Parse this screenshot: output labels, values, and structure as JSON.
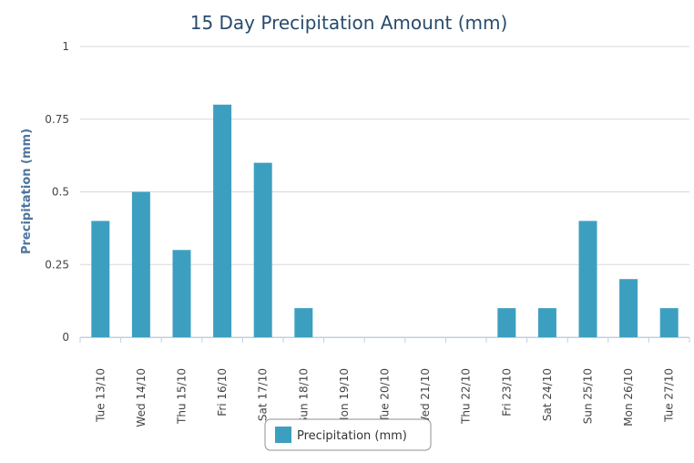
{
  "chart_data": {
    "type": "bar",
    "title": "15 Day Precipitation Amount (mm)",
    "xlabel": "",
    "ylabel": "Precipitation (mm)",
    "ylim": [
      0,
      1
    ],
    "yticks": [
      "0",
      "0.25",
      "0.5",
      "0.75",
      "1"
    ],
    "ytick_values": [
      0,
      0.25,
      0.5,
      0.75,
      1
    ],
    "grid": true,
    "legend_position": "bottom-center",
    "categories": [
      "Tue 13/10",
      "Wed 14/10",
      "Thu 15/10",
      "Fri 16/10",
      "Sat 17/10",
      "Sun 18/10",
      "Mon 19/10",
      "Tue 20/10",
      "Wed 21/10",
      "Thu 22/10",
      "Fri 23/10",
      "Sat 24/10",
      "Sun 25/10",
      "Mon 26/10",
      "Tue 27/10"
    ],
    "series": [
      {
        "name": "Precipitation (mm)",
        "color": "#3d9fc0",
        "values": [
          0.4,
          0.5,
          0.3,
          0.8,
          0.6,
          0.1,
          0,
          0,
          0,
          0,
          0.1,
          0.1,
          0.4,
          0.2,
          0.1
        ]
      }
    ]
  }
}
